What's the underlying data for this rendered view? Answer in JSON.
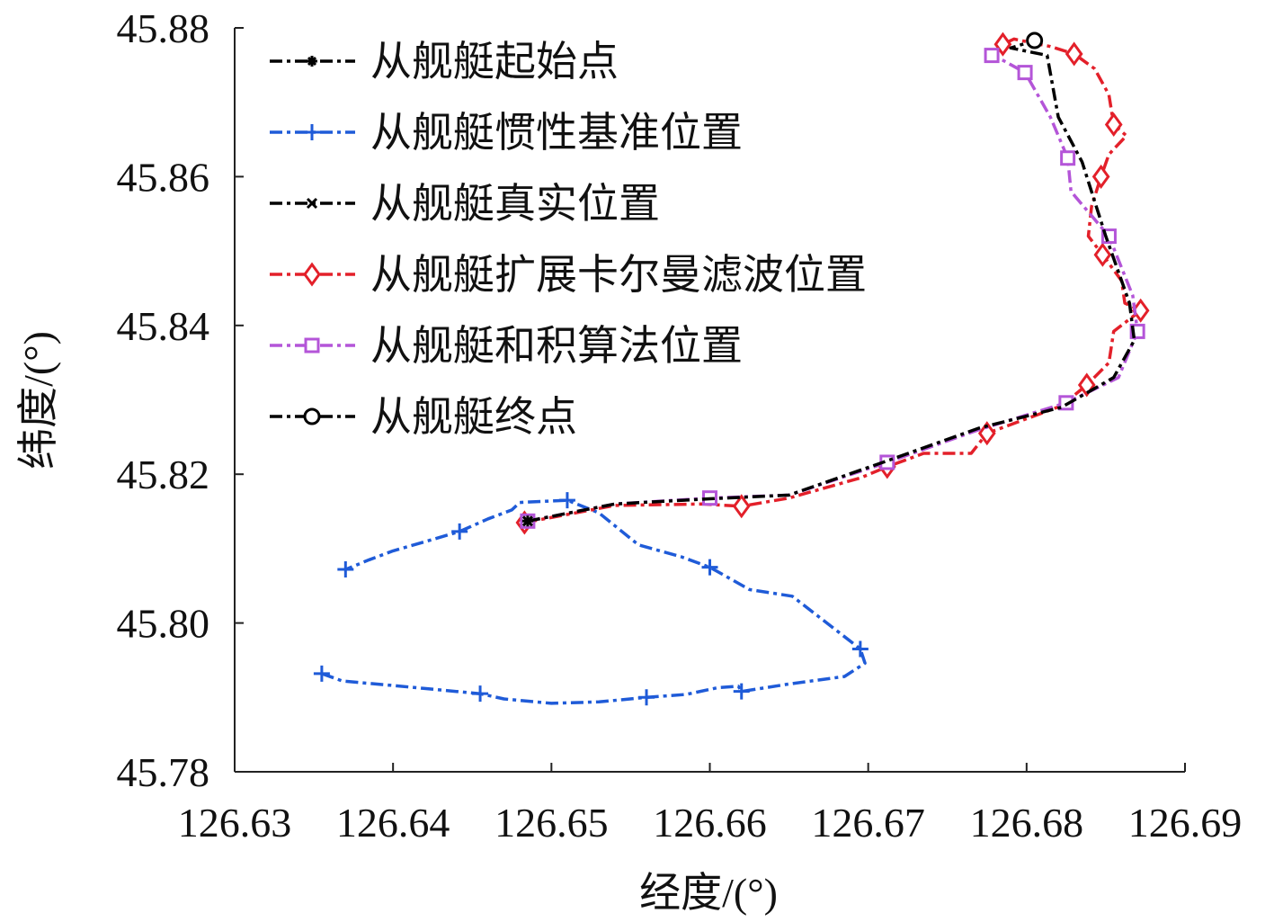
{
  "chart_data": {
    "type": "line",
    "xlabel": "经度/(°)",
    "ylabel": "纬度/(°)",
    "xlim": [
      126.63,
      126.69
    ],
    "ylim": [
      45.78,
      45.88
    ],
    "x_ticks": [
      "126.63",
      "126.64",
      "126.65",
      "126.66",
      "126.67",
      "126.68",
      "126.69"
    ],
    "y_ticks": [
      "45.78",
      "45.80",
      "45.82",
      "45.84",
      "45.86",
      "45.88"
    ],
    "legend_position": "top-left",
    "grid": false,
    "series": [
      {
        "name": "从舰艇起始点",
        "color": "#000000",
        "marker": "asterisk",
        "points": [
          [
            126.6485,
            45.8137
          ]
        ]
      },
      {
        "name": "从舰艇惯性基准位置",
        "color": "#1f5bd8",
        "marker": "plus",
        "points": [
          [
            126.6355,
            45.7932
          ],
          [
            126.6368,
            45.7922
          ],
          [
            126.64,
            45.7916
          ],
          [
            126.642,
            45.7912
          ],
          [
            126.6455,
            45.7905
          ],
          [
            126.647,
            45.7898
          ],
          [
            126.65,
            45.7892
          ],
          [
            126.653,
            45.7894
          ],
          [
            126.656,
            45.79
          ],
          [
            126.6585,
            45.7904
          ],
          [
            126.6605,
            45.7913
          ],
          [
            126.6618,
            45.7915
          ],
          [
            126.662,
            45.7908
          ],
          [
            126.665,
            45.7918
          ],
          [
            126.6685,
            45.7928
          ],
          [
            126.6698,
            45.7946
          ],
          [
            126.6695,
            45.7965
          ],
          [
            126.668,
            45.799
          ],
          [
            126.6652,
            45.8036
          ],
          [
            126.6625,
            45.8045
          ],
          [
            126.66,
            45.8075
          ],
          [
            126.6582,
            45.8089
          ],
          [
            126.6555,
            45.8105
          ],
          [
            126.653,
            45.8148
          ],
          [
            126.651,
            45.8165
          ],
          [
            126.648,
            45.8162
          ],
          [
            126.6475,
            45.8152
          ],
          [
            126.646,
            45.814
          ],
          [
            126.6442,
            45.8123
          ],
          [
            126.6418,
            45.8108
          ],
          [
            126.64,
            45.8097
          ],
          [
            126.6385,
            45.8085
          ],
          [
            126.637,
            45.8072
          ]
        ]
      },
      {
        "name": "从舰艇真实位置",
        "color": "#000000",
        "marker": "x",
        "points": [
          [
            126.6485,
            45.8137
          ],
          [
            126.654,
            45.816
          ],
          [
            126.66,
            45.8167
          ],
          [
            126.665,
            45.8172
          ],
          [
            126.6712,
            45.8218
          ],
          [
            126.677,
            45.8262
          ],
          [
            126.6822,
            45.829
          ],
          [
            126.6855,
            45.833
          ],
          [
            126.6868,
            45.838
          ],
          [
            126.6865,
            45.843
          ],
          [
            126.685,
            45.852
          ],
          [
            126.6835,
            45.862
          ],
          [
            126.682,
            45.868
          ],
          [
            126.6813,
            45.8763
          ],
          [
            126.679,
            45.8773
          ],
          [
            126.6805,
            45.8783
          ]
        ]
      },
      {
        "name": "从舰艇扩展卡尔曼滤波位置",
        "color": "#e3202a",
        "marker": "diamond",
        "points": [
          [
            126.6483,
            45.8135
          ],
          [
            126.654,
            45.8158
          ],
          [
            126.6595,
            45.816
          ],
          [
            126.662,
            45.8157
          ],
          [
            126.665,
            45.8168
          ],
          [
            126.6695,
            45.8195
          ],
          [
            126.6712,
            45.821
          ],
          [
            126.6735,
            45.8228
          ],
          [
            126.6765,
            45.8228
          ],
          [
            126.6775,
            45.8255
          ],
          [
            126.6807,
            45.828
          ],
          [
            126.6822,
            45.8292
          ],
          [
            126.6838,
            45.832
          ],
          [
            126.6852,
            45.835
          ],
          [
            126.6855,
            45.8392
          ],
          [
            126.6872,
            45.842
          ],
          [
            126.6862,
            45.843
          ],
          [
            126.686,
            45.846
          ],
          [
            126.6848,
            45.8495
          ],
          [
            126.6839,
            45.852
          ],
          [
            126.6841,
            45.856
          ],
          [
            126.6847,
            45.86
          ],
          [
            126.6852,
            45.863
          ],
          [
            126.6863,
            45.8655
          ],
          [
            126.6855,
            45.867
          ],
          [
            126.6852,
            45.871
          ],
          [
            126.6843,
            45.8745
          ],
          [
            126.683,
            45.8765
          ],
          [
            126.6815,
            45.8775
          ],
          [
            126.6792,
            45.8785
          ],
          [
            126.6785,
            45.8778
          ]
        ]
      },
      {
        "name": "从舰艇和积算法位置",
        "color": "#b455d8",
        "marker": "square",
        "points": [
          [
            126.6485,
            45.8137
          ],
          [
            126.654,
            45.816
          ],
          [
            126.66,
            45.8168
          ],
          [
            126.665,
            45.8172
          ],
          [
            126.6712,
            45.8216
          ],
          [
            126.677,
            45.826
          ],
          [
            126.6825,
            45.8296
          ],
          [
            126.6858,
            45.833
          ],
          [
            126.687,
            45.8392
          ],
          [
            126.6867,
            45.844
          ],
          [
            126.6852,
            45.852
          ],
          [
            126.6828,
            45.858
          ],
          [
            126.6826,
            45.8625
          ],
          [
            126.6815,
            45.868
          ],
          [
            126.6799,
            45.874
          ],
          [
            126.6782,
            45.876
          ],
          [
            126.6778,
            45.8763
          ]
        ]
      },
      {
        "name": "从舰艇终点",
        "color": "#000000",
        "marker": "circle",
        "points": [
          [
            126.6805,
            45.8783
          ]
        ]
      }
    ]
  }
}
